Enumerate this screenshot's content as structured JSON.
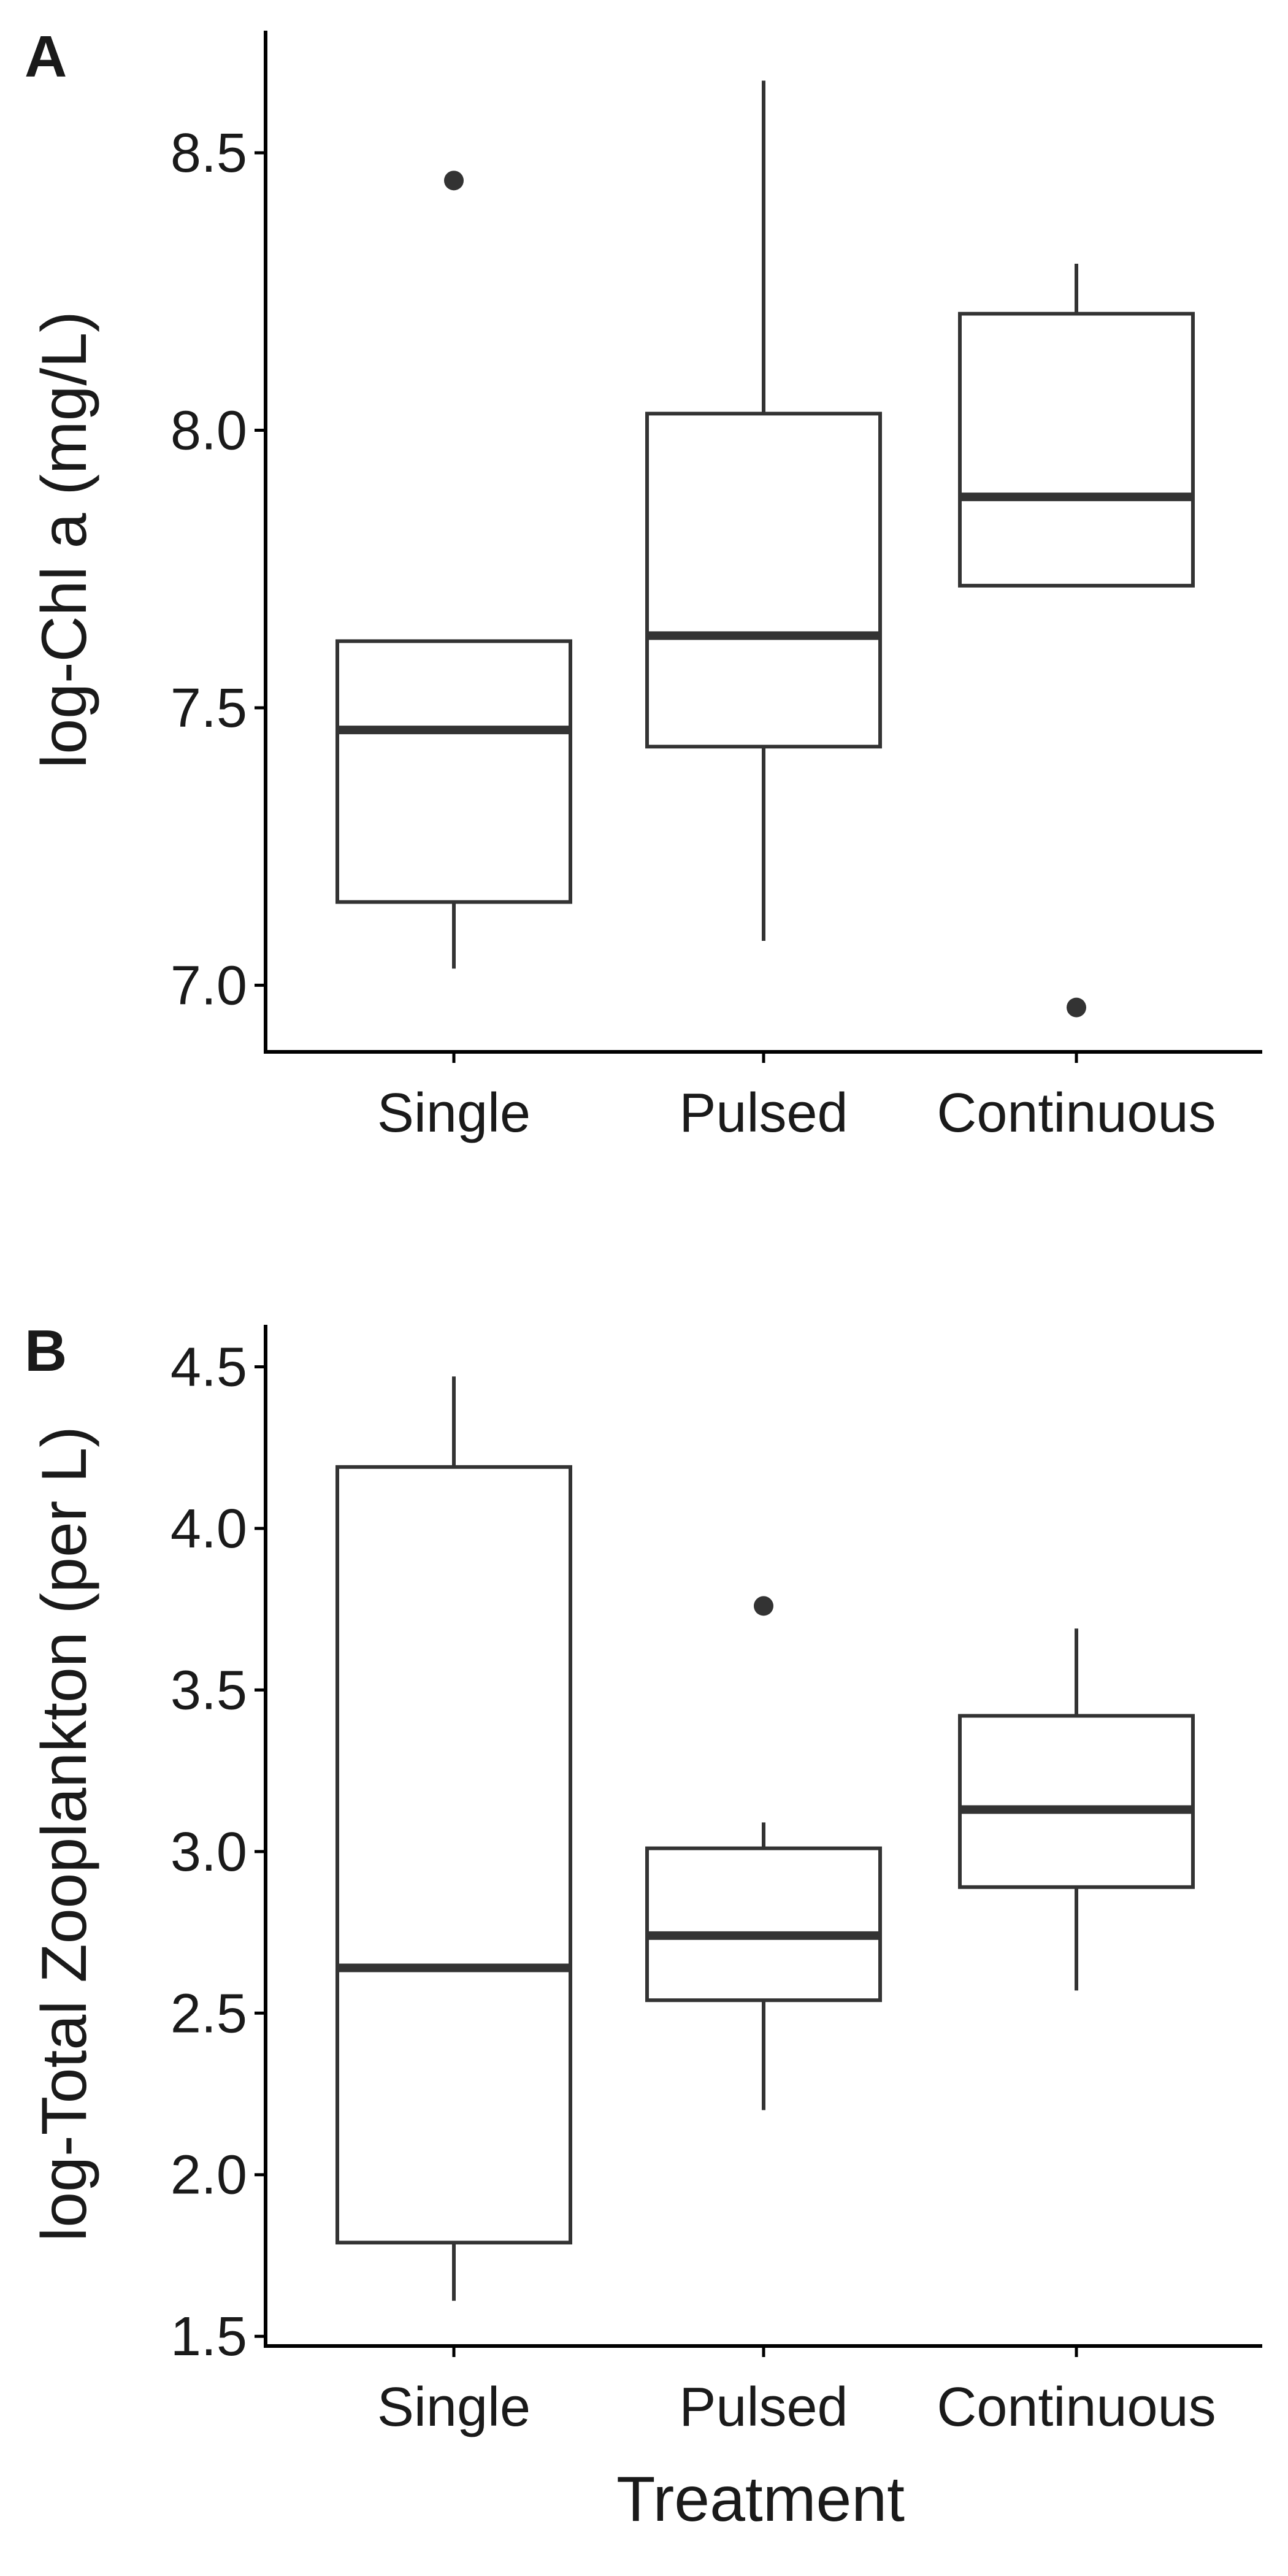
{
  "colors": {
    "box_stroke": "#333333",
    "axis": "#000000",
    "background": "#ffffff"
  },
  "shared_xlabel": "Treatment",
  "chart_data": [
    {
      "type": "boxplot",
      "panel_label": "A",
      "xlabel": "",
      "ylabel": "log-Chl a (mg/L)",
      "categories": [
        "Single",
        "Pulsed",
        "Continuous"
      ],
      "ylim": [
        6.88,
        8.72
      ],
      "yticks": [
        7.0,
        7.5,
        8.0,
        8.5
      ],
      "ytick_labels": [
        "7.0",
        "7.5",
        "8.0",
        "8.5"
      ],
      "grid": false,
      "boxes": [
        {
          "category": "Single",
          "whisker_low": 7.03,
          "q1": 7.15,
          "median": 7.46,
          "q3": 7.62,
          "whisker_high": 7.62,
          "outliers": [
            8.45
          ]
        },
        {
          "category": "Pulsed",
          "whisker_low": 7.08,
          "q1": 7.43,
          "median": 7.63,
          "q3": 8.03,
          "whisker_high": 8.63,
          "outliers": []
        },
        {
          "category": "Continuous",
          "whisker_low": 7.72,
          "q1": 7.72,
          "median": 7.88,
          "q3": 8.21,
          "whisker_high": 8.3,
          "outliers": [
            6.96
          ]
        }
      ]
    },
    {
      "type": "boxplot",
      "panel_label": "B",
      "xlabel": "Treatment",
      "ylabel": "log-Total Zooplankton (per L)",
      "categories": [
        "Single",
        "Pulsed",
        "Continuous"
      ],
      "ylim": [
        1.47,
        4.63
      ],
      "yticks": [
        1.5,
        2.0,
        2.5,
        3.0,
        3.5,
        4.0,
        4.5
      ],
      "ytick_labels": [
        "1.5",
        "2.0",
        "2.5",
        "3.0",
        "3.5",
        "4.0",
        "4.5"
      ],
      "grid": false,
      "boxes": [
        {
          "category": "Single",
          "whisker_low": 1.61,
          "q1": 1.79,
          "median": 2.64,
          "q3": 4.19,
          "whisker_high": 4.47,
          "outliers": []
        },
        {
          "category": "Pulsed",
          "whisker_low": 2.2,
          "q1": 2.54,
          "median": 2.74,
          "q3": 3.01,
          "whisker_high": 3.09,
          "outliers": [
            3.76
          ]
        },
        {
          "category": "Continuous",
          "whisker_low": 2.57,
          "q1": 2.89,
          "median": 3.13,
          "q3": 3.42,
          "whisker_high": 3.69,
          "outliers": []
        }
      ]
    }
  ]
}
